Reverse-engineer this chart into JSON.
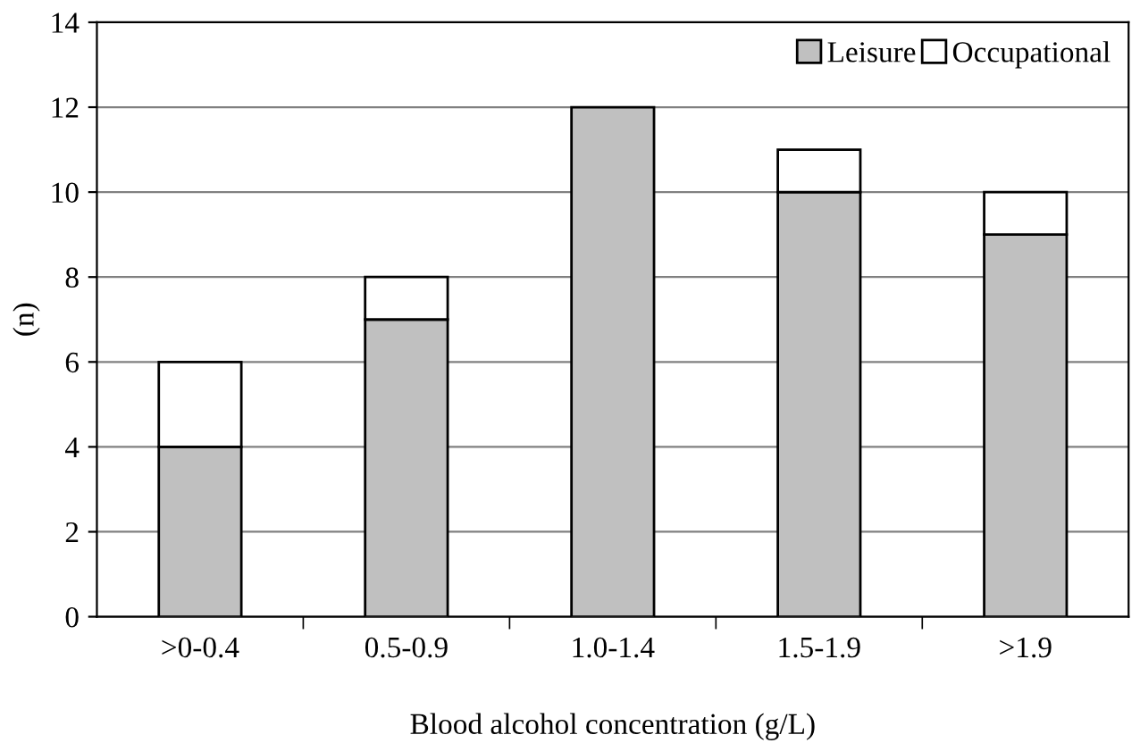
{
  "chart_data": {
    "type": "bar",
    "stacked": true,
    "xlabel": "Blood alcohol concentration (g/L)",
    "ylabel": "(n)",
    "categories": [
      ">0-0.4",
      "0.5-0.9",
      "1.0-1.4",
      "1.5-1.9",
      ">1.9"
    ],
    "series": [
      {
        "name": "Leisure",
        "color": "#c0c0c0",
        "values": [
          4,
          7,
          12,
          10,
          9
        ]
      },
      {
        "name": "Occupational",
        "color": "#ffffff",
        "values": [
          2,
          1,
          null,
          1,
          1
        ]
      }
    ],
    "ylim": [
      0,
      14
    ],
    "yticks": [
      0,
      2,
      4,
      6,
      8,
      10,
      12,
      14
    ],
    "grid": "y",
    "legend": "top right"
  }
}
